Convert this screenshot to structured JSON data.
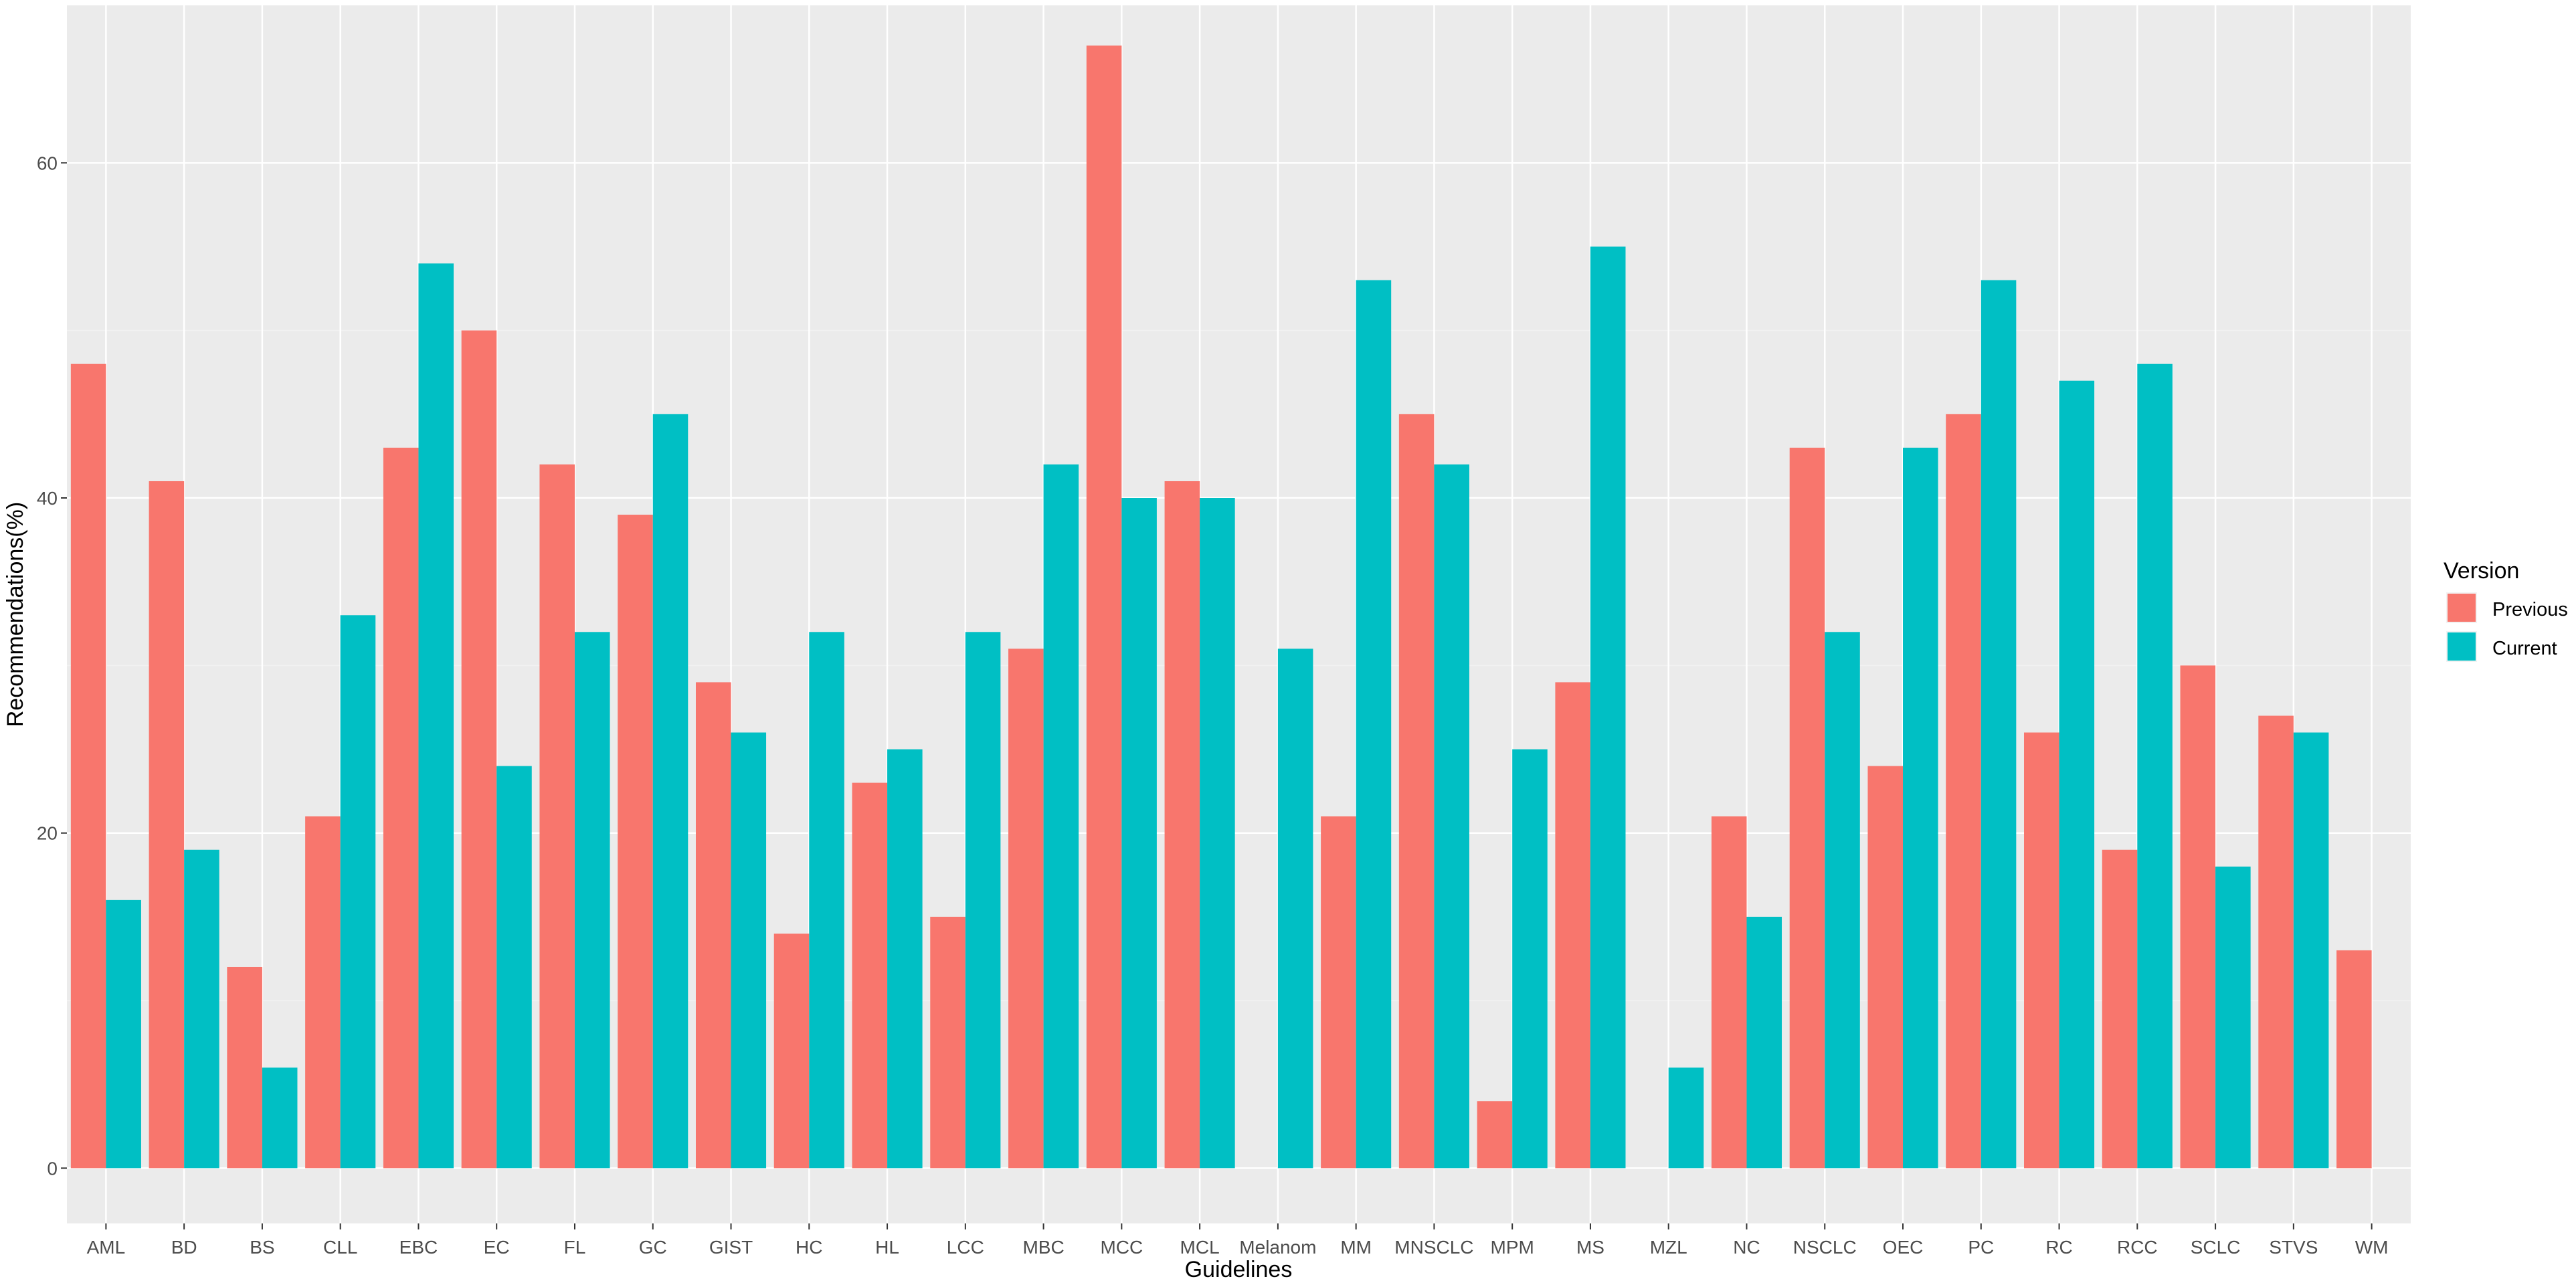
{
  "chart_data": {
    "type": "bar",
    "title": "",
    "xlabel": "Guidelines",
    "ylabel": "Recommendations(%)",
    "ylim": [
      -3.3,
      69.4
    ],
    "yticks": [
      0,
      20,
      40,
      60
    ],
    "grid": true,
    "legend": {
      "title": "Version",
      "placement": "right",
      "entries": [
        "Previous",
        "Current"
      ]
    },
    "categories": [
      "AML",
      "BD",
      "BS",
      "CLL",
      "EBC",
      "EC",
      "FL",
      "GC",
      "GIST",
      "HC",
      "HL",
      "LCC",
      "MBC",
      "MCC",
      "MCL",
      "Melanom",
      "MM",
      "MNSCLC",
      "MPM",
      "MS",
      "MZL",
      "NC",
      "NSCLC",
      "OEC",
      "PC",
      "RC",
      "RCC",
      "SCLC",
      "STVS",
      "WM"
    ],
    "series": [
      {
        "name": "Previous",
        "color": "#F8766D",
        "values": [
          48,
          41,
          12,
          21,
          43,
          50,
          42,
          39,
          29,
          14,
          23,
          15,
          31,
          67,
          41,
          null,
          21,
          45,
          4,
          29,
          null,
          21,
          43,
          24,
          45,
          26,
          19,
          30,
          27,
          13
        ]
      },
      {
        "name": "Current",
        "color": "#00BFC4",
        "values": [
          16,
          19,
          6,
          33,
          54,
          24,
          32,
          45,
          26,
          32,
          25,
          32,
          42,
          40,
          40,
          31,
          53,
          42,
          25,
          55,
          6,
          15,
          32,
          43,
          53,
          47,
          48,
          18,
          26,
          null
        ]
      }
    ]
  },
  "colors": {
    "panel_bg": "#EBEBEB",
    "grid_major": "#FFFFFF",
    "grid_minor": "#F2F2F2",
    "tick_text": "#4D4D4D"
  }
}
